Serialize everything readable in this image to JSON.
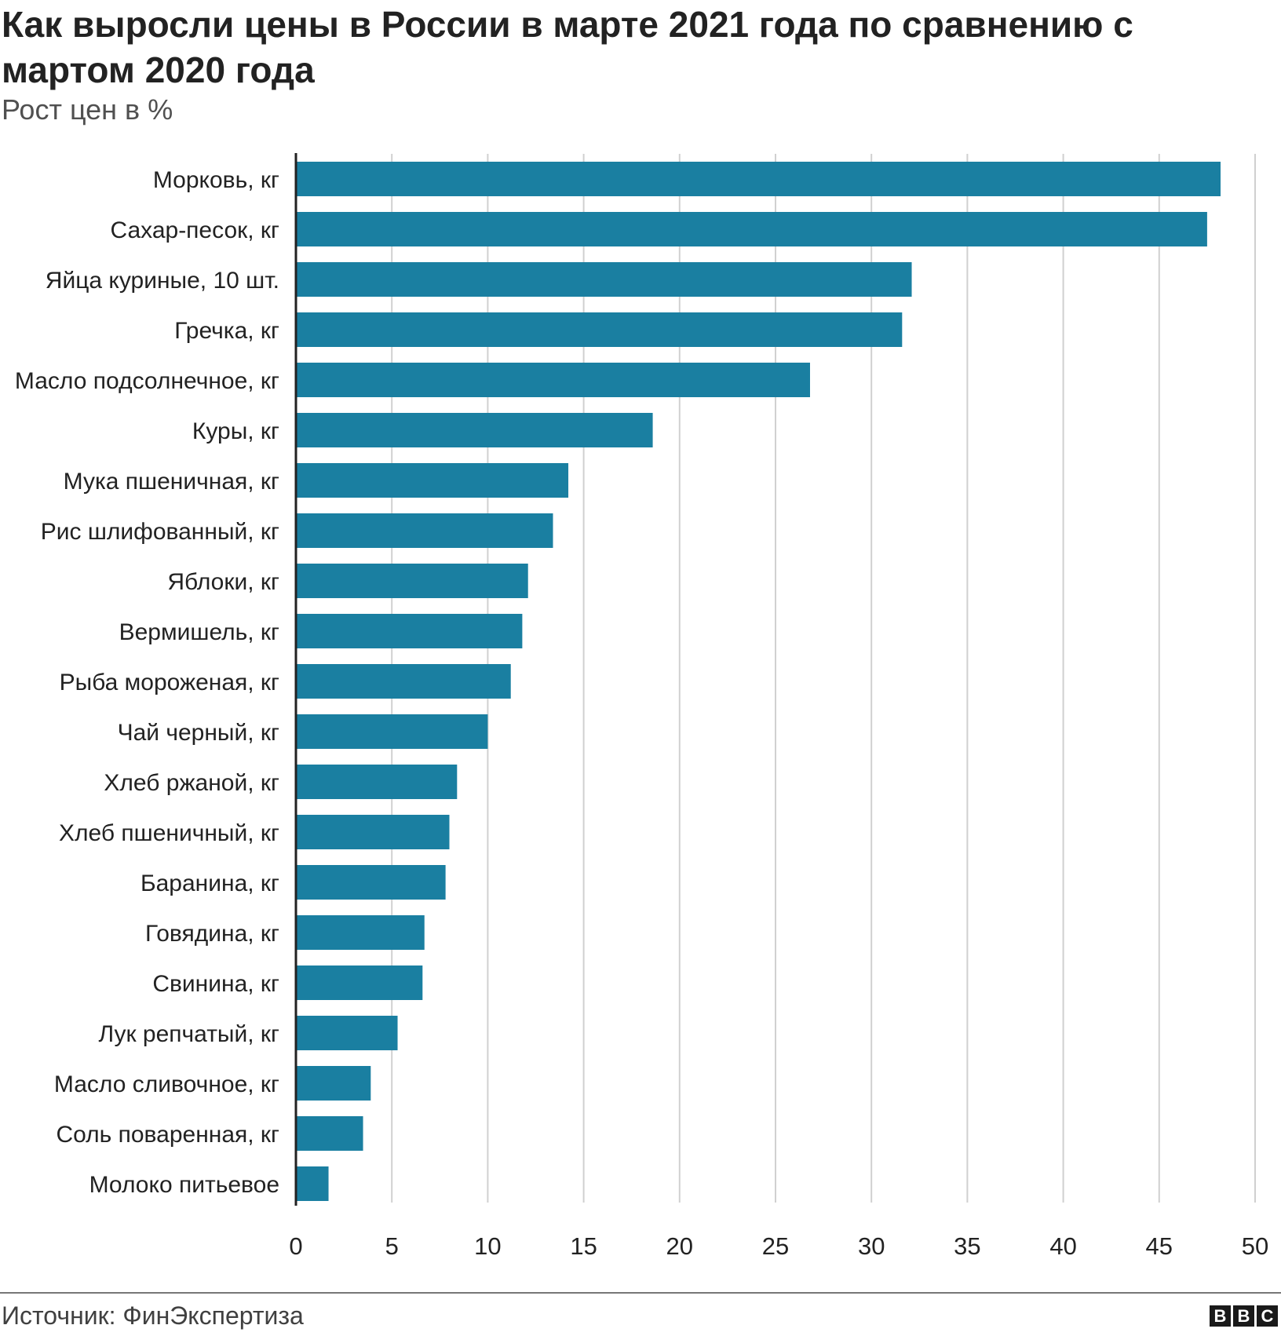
{
  "title": "Как выросли цены в России в марте 2021 года по сравнению с мартом 2020 года",
  "subtitle": "Рост цен в %",
  "source": "Источник: ФинЭкспертиза",
  "logo": [
    "B",
    "B",
    "C"
  ],
  "colors": {
    "bar": "#1a7fa1",
    "grid": "#d0d0d0",
    "axis": "#222222"
  },
  "chart_data": {
    "type": "bar",
    "orientation": "horizontal",
    "title": "Как выросли цены в России в марте 2021 года по сравнению с мартом 2020 года",
    "subtitle": "Рост цен в %",
    "xlabel": "",
    "ylabel": "",
    "xlim": [
      0,
      50
    ],
    "ticks": [
      0,
      5,
      10,
      15,
      20,
      25,
      30,
      35,
      40,
      45,
      50
    ],
    "grid": true,
    "categories": [
      "Морковь, кг",
      "Сахар-песок, кг",
      "Яйца куриные, 10 шт.",
      "Гречка, кг",
      "Масло подсолнечное, кг",
      "Куры, кг",
      "Мука пшеничная, кг",
      "Рис шлифованный, кг",
      "Яблоки, кг",
      "Вермишель, кг",
      "Рыба мороженая, кг",
      "Чай черный, кг",
      "Хлеб ржаной, кг",
      "Хлеб пшеничный, кг",
      "Баранина, кг",
      "Говядина, кг",
      "Свинина, кг",
      "Лук репчатый, кг",
      "Масло сливочное, кг",
      "Соль поваренная, кг",
      "Молоко питьевое"
    ],
    "values": [
      48.2,
      47.5,
      32.1,
      31.6,
      26.8,
      18.6,
      14.2,
      13.4,
      12.1,
      11.8,
      11.2,
      10.0,
      8.4,
      8.0,
      7.8,
      6.7,
      6.6,
      5.3,
      3.9,
      3.5,
      1.7
    ]
  }
}
